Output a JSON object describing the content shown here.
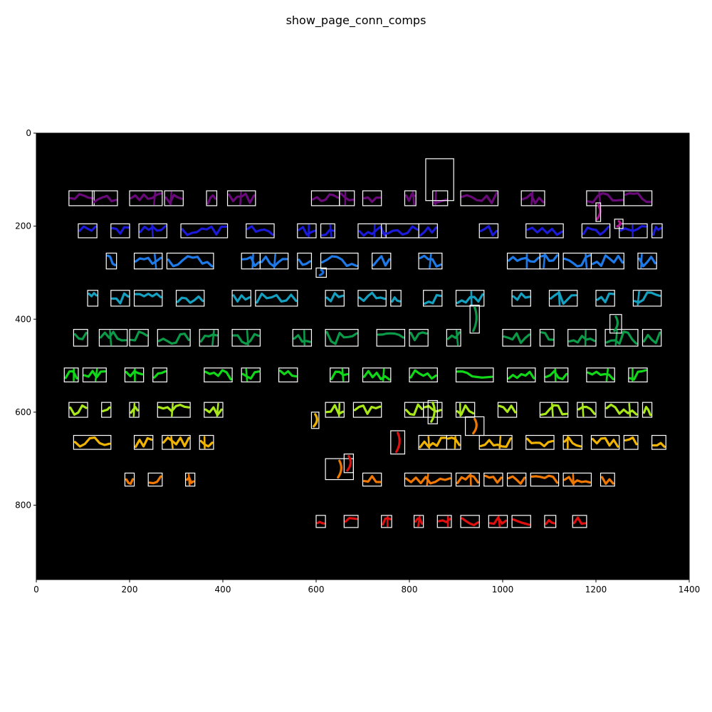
{
  "chart_data": {
    "type": "image",
    "title": "show_page_conn_comps",
    "xlabel": "",
    "ylabel": "",
    "xlim": [
      0,
      1400
    ],
    "ylim": [
      960,
      0
    ],
    "x_ticks": [
      0,
      200,
      400,
      600,
      800,
      1000,
      1200,
      1400
    ],
    "y_ticks": [
      0,
      200,
      400,
      600,
      800
    ],
    "grid": false,
    "legend": "none",
    "background_color": "#000000",
    "box_color": "#ffffff",
    "colormap": "nipy_spectral",
    "rows": [
      {
        "label": "row-1",
        "y": 140,
        "h": 32,
        "color": "#6a0a7a",
        "boxes": [
          [
            70,
            54
          ],
          [
            120,
            54
          ],
          [
            200,
            70
          ],
          [
            275,
            40
          ],
          [
            365,
            22
          ],
          [
            410,
            60
          ],
          [
            590,
            60
          ],
          [
            650,
            32
          ],
          [
            700,
            40
          ],
          [
            790,
            24
          ],
          [
            850,
            32
          ],
          [
            910,
            80
          ],
          [
            1040,
            50
          ],
          [
            1180,
            80
          ],
          [
            1260,
            60
          ]
        ]
      },
      {
        "label": "row-2",
        "y": 210,
        "h": 30,
        "color": "#1a1ad8",
        "boxes": [
          [
            90,
            40
          ],
          [
            160,
            40
          ],
          [
            220,
            60
          ],
          [
            310,
            100
          ],
          [
            450,
            60
          ],
          [
            560,
            40
          ],
          [
            610,
            30
          ],
          [
            690,
            60
          ],
          [
            740,
            80
          ],
          [
            820,
            40
          ],
          [
            950,
            40
          ],
          [
            1050,
            80
          ],
          [
            1170,
            60
          ],
          [
            1250,
            60
          ],
          [
            1320,
            22
          ]
        ]
      },
      {
        "label": "row-3",
        "y": 275,
        "h": 34,
        "color": "#1e7ae8",
        "boxes": [
          [
            150,
            22
          ],
          [
            210,
            60
          ],
          [
            280,
            100
          ],
          [
            440,
            40
          ],
          [
            480,
            60
          ],
          [
            560,
            30
          ],
          [
            610,
            80
          ],
          [
            720,
            40
          ],
          [
            820,
            50
          ],
          [
            1010,
            70
          ],
          [
            1080,
            40
          ],
          [
            1130,
            60
          ],
          [
            1190,
            70
          ],
          [
            1290,
            40
          ]
        ]
      },
      {
        "label": "row-4",
        "y": 355,
        "h": 34,
        "color": "#14a0c0",
        "boxes": [
          [
            110,
            22
          ],
          [
            160,
            40
          ],
          [
            210,
            60
          ],
          [
            300,
            60
          ],
          [
            420,
            40
          ],
          [
            470,
            90
          ],
          [
            620,
            40
          ],
          [
            690,
            60
          ],
          [
            760,
            22
          ],
          [
            830,
            40
          ],
          [
            900,
            60
          ],
          [
            1020,
            40
          ],
          [
            1100,
            60
          ],
          [
            1200,
            40
          ],
          [
            1280,
            60
          ]
        ]
      },
      {
        "label": "row-5",
        "y": 440,
        "h": 36,
        "color": "#0a9a48",
        "boxes": [
          [
            80,
            30
          ],
          [
            135,
            60
          ],
          [
            200,
            40
          ],
          [
            260,
            70
          ],
          [
            350,
            40
          ],
          [
            420,
            60
          ],
          [
            550,
            40
          ],
          [
            620,
            70
          ],
          [
            730,
            60
          ],
          [
            800,
            40
          ],
          [
            880,
            30
          ],
          [
            1000,
            60
          ],
          [
            1080,
            30
          ],
          [
            1140,
            60
          ],
          [
            1220,
            70
          ],
          [
            1300,
            40
          ]
        ]
      },
      {
        "label": "row-6",
        "y": 520,
        "h": 30,
        "color": "#10d818",
        "boxes": [
          [
            60,
            30
          ],
          [
            100,
            50
          ],
          [
            190,
            40
          ],
          [
            250,
            30
          ],
          [
            360,
            60
          ],
          [
            440,
            40
          ],
          [
            520,
            40
          ],
          [
            630,
            40
          ],
          [
            700,
            60
          ],
          [
            800,
            60
          ],
          [
            900,
            80
          ],
          [
            1010,
            60
          ],
          [
            1090,
            50
          ],
          [
            1180,
            60
          ],
          [
            1270,
            40
          ]
        ]
      },
      {
        "label": "row-7",
        "y": 595,
        "h": 32,
        "color": "#a8e818",
        "boxes": [
          [
            70,
            40
          ],
          [
            140,
            20
          ],
          [
            200,
            20
          ],
          [
            260,
            70
          ],
          [
            360,
            40
          ],
          [
            620,
            40
          ],
          [
            680,
            60
          ],
          [
            790,
            40
          ],
          [
            830,
            40
          ],
          [
            900,
            40
          ],
          [
            990,
            40
          ],
          [
            1080,
            60
          ],
          [
            1160,
            40
          ],
          [
            1220,
            70
          ],
          [
            1300,
            20
          ]
        ]
      },
      {
        "label": "row-8",
        "y": 665,
        "h": 30,
        "color": "#f0b400",
        "boxes": [
          [
            80,
            80
          ],
          [
            210,
            40
          ],
          [
            270,
            60
          ],
          [
            350,
            30
          ],
          [
            820,
            60
          ],
          [
            880,
            30
          ],
          [
            950,
            70
          ],
          [
            1050,
            60
          ],
          [
            1130,
            40
          ],
          [
            1190,
            60
          ],
          [
            1260,
            30
          ],
          [
            1320,
            30
          ]
        ]
      },
      {
        "label": "row-9",
        "y": 745,
        "h": 28,
        "color": "#f07800",
        "boxes": [
          [
            190,
            20
          ],
          [
            240,
            30
          ],
          [
            320,
            20
          ],
          [
            700,
            40
          ],
          [
            790,
            100
          ],
          [
            900,
            50
          ],
          [
            960,
            40
          ],
          [
            1010,
            40
          ],
          [
            1060,
            60
          ],
          [
            1130,
            60
          ],
          [
            1210,
            30
          ]
        ]
      },
      {
        "label": "row-10",
        "y": 835,
        "h": 26,
        "color": "#e01010",
        "boxes": [
          [
            600,
            20
          ],
          [
            660,
            30
          ],
          [
            740,
            22
          ],
          [
            810,
            20
          ],
          [
            860,
            30
          ],
          [
            910,
            40
          ],
          [
            970,
            40
          ],
          [
            1020,
            40
          ],
          [
            1090,
            24
          ],
          [
            1150,
            30
          ]
        ]
      }
    ],
    "extra_boxes": [
      [
        835,
        55,
        60,
        90,
        "#000000"
      ],
      [
        1240,
        185,
        18,
        20,
        "#b01890"
      ],
      [
        1200,
        150,
        10,
        40,
        "#b01890"
      ],
      [
        600,
        290,
        22,
        20,
        "#1a6ad8"
      ],
      [
        1230,
        390,
        25,
        40,
        "#0a9a48"
      ],
      [
        930,
        370,
        20,
        60,
        "#0a9a48"
      ],
      [
        840,
        575,
        20,
        50,
        "#a8e818"
      ],
      [
        590,
        600,
        16,
        35,
        "#f0b400"
      ],
      [
        620,
        700,
        60,
        45,
        "#f07800"
      ],
      [
        920,
        610,
        40,
        40,
        "#f07800"
      ],
      [
        760,
        640,
        30,
        50,
        "#e01010"
      ],
      [
        660,
        690,
        20,
        40,
        "#e01010"
      ]
    ]
  }
}
